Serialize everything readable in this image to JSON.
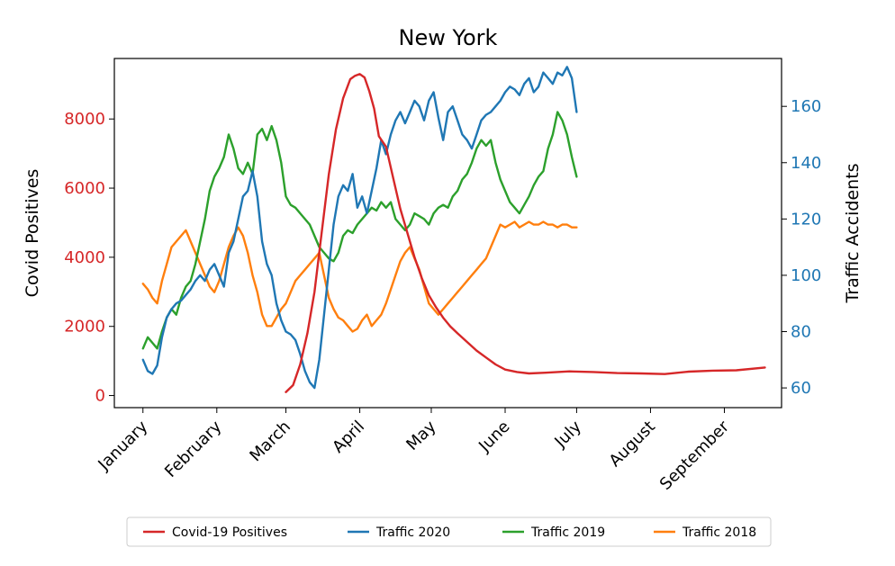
{
  "chart_data": {
    "type": "line",
    "title": "New York",
    "xlabel": "",
    "ylabel_left": "Covid Positives",
    "ylabel_right": "Traffic Accidents",
    "x_tick_labels": [
      "January",
      "February",
      "March",
      "April",
      "May",
      "June",
      "July",
      "August",
      "September"
    ],
    "x_tick_days": [
      1,
      32,
      61,
      92,
      122,
      153,
      183,
      214,
      245
    ],
    "xlim": [
      -11,
      269
    ],
    "y_left": {
      "ticks": [
        0,
        2000,
        4000,
        6000,
        8000
      ],
      "ylim": [
        -350,
        9750
      ],
      "color": "#d62728"
    },
    "y_right": {
      "ticks": [
        60,
        80,
        100,
        120,
        140,
        160
      ],
      "ylim": [
        53,
        177
      ],
      "color": "#1f77b4"
    },
    "legend_position": "bottom-center",
    "grid": false,
    "series": [
      {
        "name": "Covid-19 Positives",
        "color": "#d62728",
        "axis": "left",
        "x": [
          61,
          64,
          67,
          70,
          73,
          76,
          79,
          82,
          85,
          88,
          90,
          92,
          94,
          96,
          98,
          100,
          103,
          106,
          109,
          112,
          115,
          118,
          121,
          124,
          127,
          130,
          133,
          137,
          141,
          145,
          149,
          153,
          158,
          163,
          170,
          180,
          190,
          200,
          210,
          220,
          230,
          240,
          250,
          262
        ],
        "y": [
          100,
          300,
          900,
          1800,
          3000,
          4700,
          6400,
          7700,
          8600,
          9150,
          9250,
          9300,
          9200,
          8800,
          8300,
          7500,
          7200,
          6300,
          5400,
          4700,
          4000,
          3400,
          2900,
          2550,
          2250,
          2000,
          1800,
          1550,
          1300,
          1100,
          900,
          750,
          680,
          640,
          660,
          700,
          680,
          650,
          640,
          620,
          690,
          720,
          730,
          810
        ]
      },
      {
        "name": "Traffic 2020",
        "color": "#1f77b4",
        "axis": "right",
        "x": [
          1,
          3,
          5,
          7,
          9,
          11,
          13,
          15,
          17,
          19,
          21,
          23,
          25,
          27,
          29,
          31,
          33,
          35,
          37,
          39,
          41,
          43,
          45,
          47,
          49,
          51,
          53,
          55,
          57,
          59,
          61,
          63,
          65,
          67,
          69,
          71,
          73,
          75,
          77,
          79,
          81,
          83,
          85,
          87,
          89,
          91,
          93,
          95,
          97,
          99,
          101,
          103,
          105,
          107,
          109,
          111,
          113,
          115,
          117,
          119,
          121,
          123,
          125,
          127,
          129,
          131,
          133,
          135,
          137,
          139,
          141,
          143,
          145,
          147,
          149,
          151,
          153,
          155,
          157,
          159,
          161,
          163,
          165,
          167,
          169,
          171,
          173,
          175,
          177,
          179,
          181,
          183
        ],
        "y": [
          70,
          66,
          65,
          68,
          78,
          85,
          88,
          90,
          91,
          93,
          95,
          98,
          100,
          98,
          102,
          104,
          100,
          96,
          108,
          112,
          120,
          128,
          130,
          137,
          128,
          112,
          104,
          100,
          90,
          84,
          80,
          79,
          77,
          72,
          66,
          62,
          60,
          70,
          86,
          102,
          118,
          128,
          132,
          130,
          136,
          124,
          128,
          122,
          130,
          138,
          148,
          143,
          150,
          155,
          158,
          154,
          158,
          162,
          160,
          155,
          162,
          165,
          156,
          148,
          158,
          160,
          155,
          150,
          148,
          145,
          150,
          155,
          157,
          158,
          160,
          162,
          165,
          167,
          166,
          164,
          168,
          170,
          165,
          167,
          172,
          170,
          168,
          172,
          171,
          174,
          170,
          158
        ]
      },
      {
        "name": "Traffic 2019",
        "color": "#2ca02c",
        "axis": "right",
        "x": [
          1,
          3,
          5,
          7,
          9,
          11,
          13,
          15,
          17,
          19,
          21,
          23,
          25,
          27,
          29,
          31,
          33,
          35,
          37,
          39,
          41,
          43,
          45,
          47,
          49,
          51,
          53,
          55,
          57,
          59,
          61,
          63,
          65,
          67,
          69,
          71,
          73,
          75,
          77,
          79,
          81,
          83,
          85,
          87,
          89,
          91,
          93,
          95,
          97,
          99,
          101,
          103,
          105,
          107,
          109,
          111,
          113,
          115,
          117,
          119,
          121,
          123,
          125,
          127,
          129,
          131,
          133,
          135,
          137,
          139,
          141,
          143,
          145,
          147,
          149,
          151,
          153,
          155,
          157,
          159,
          161,
          163,
          165,
          167,
          169,
          171,
          173,
          175,
          177,
          179,
          181,
          183
        ],
        "y": [
          74,
          78,
          76,
          74,
          80,
          85,
          88,
          86,
          92,
          96,
          98,
          104,
          112,
          120,
          130,
          135,
          138,
          142,
          150,
          145,
          138,
          136,
          140,
          136,
          150,
          152,
          148,
          153,
          148,
          140,
          128,
          125,
          124,
          122,
          120,
          118,
          114,
          110,
          108,
          106,
          105,
          108,
          114,
          116,
          115,
          118,
          120,
          122,
          124,
          123,
          126,
          124,
          126,
          120,
          118,
          116,
          118,
          122,
          121,
          120,
          118,
          122,
          124,
          125,
          124,
          128,
          130,
          134,
          136,
          140,
          145,
          148,
          146,
          148,
          140,
          134,
          130,
          126,
          124,
          122,
          125,
          128,
          132,
          135,
          137,
          145,
          150,
          158,
          155,
          150,
          142,
          135
        ]
      },
      {
        "name": "Traffic 2018",
        "color": "#ff7f0e",
        "axis": "right",
        "x": [
          1,
          3,
          5,
          7,
          9,
          11,
          13,
          15,
          17,
          19,
          21,
          23,
          25,
          27,
          29,
          31,
          33,
          35,
          37,
          39,
          41,
          43,
          45,
          47,
          49,
          51,
          53,
          55,
          57,
          59,
          61,
          63,
          65,
          67,
          69,
          71,
          73,
          75,
          77,
          79,
          81,
          83,
          85,
          87,
          89,
          91,
          93,
          95,
          97,
          99,
          101,
          103,
          105,
          107,
          109,
          111,
          113,
          115,
          117,
          119,
          121,
          123,
          125,
          127,
          129,
          131,
          133,
          135,
          137,
          139,
          141,
          143,
          145,
          147,
          149,
          151,
          153,
          155,
          157,
          159,
          161,
          163,
          165,
          167,
          169,
          171,
          173,
          175,
          177,
          179,
          181,
          183
        ],
        "y": [
          97,
          95,
          92,
          90,
          98,
          104,
          110,
          112,
          114,
          116,
          112,
          108,
          104,
          100,
          96,
          94,
          98,
          104,
          110,
          114,
          117,
          114,
          108,
          100,
          94,
          86,
          82,
          82,
          85,
          88,
          90,
          94,
          98,
          100,
          102,
          104,
          106,
          108,
          100,
          92,
          88,
          85,
          84,
          82,
          80,
          81,
          84,
          86,
          82,
          84,
          86,
          90,
          95,
          100,
          105,
          108,
          110,
          106,
          102,
          96,
          90,
          88,
          86,
          88,
          90,
          92,
          94,
          96,
          98,
          100,
          102,
          104,
          106,
          110,
          114,
          118,
          117,
          118,
          119,
          117,
          118,
          119,
          118,
          118,
          119,
          118,
          118,
          117,
          118,
          118,
          117,
          117
        ]
      }
    ]
  }
}
